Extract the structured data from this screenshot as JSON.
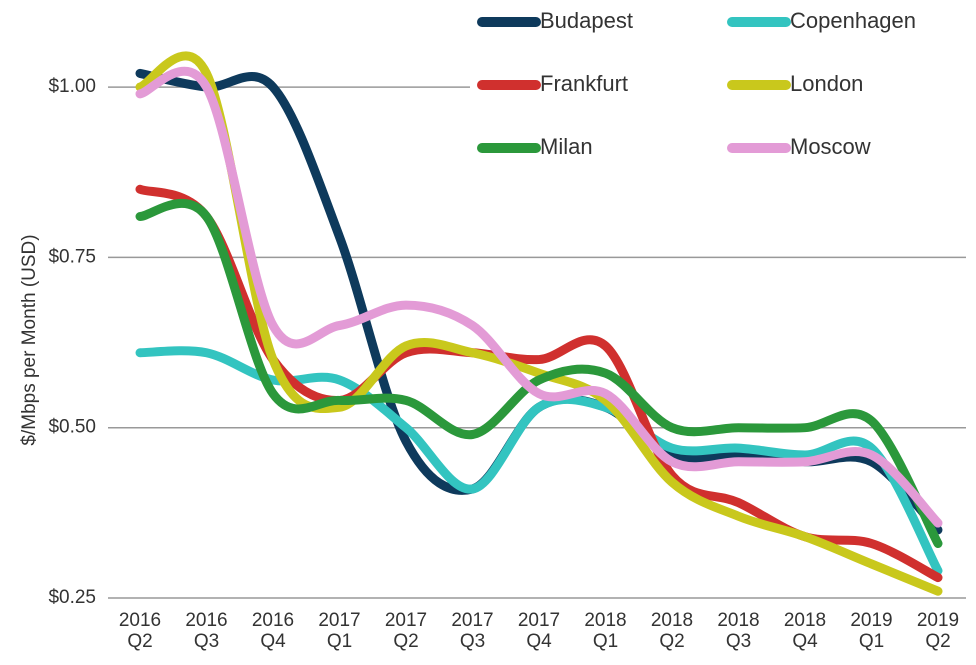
{
  "chart_data": {
    "type": "line",
    "y_label": "$/Mbps per Month (USD)",
    "categories": [
      "2016 Q2",
      "2016 Q3",
      "2016 Q4",
      "2017 Q1",
      "2017 Q2",
      "2017 Q3",
      "2017 Q4",
      "2018 Q1",
      "2018 Q2",
      "2018 Q3",
      "2018 Q4",
      "2019 Q1",
      "2019 Q2"
    ],
    "series": [
      {
        "name": "Budapest",
        "color": "#0e3a5c",
        "values": [
          1.02,
          1.0,
          1.0,
          0.78,
          0.48,
          0.41,
          0.53,
          0.53,
          0.46,
          0.46,
          0.45,
          0.45,
          0.35
        ]
      },
      {
        "name": "Copenhagen",
        "color": "#33c4c0",
        "values": [
          0.61,
          0.61,
          0.57,
          0.57,
          0.5,
          0.41,
          0.53,
          0.53,
          0.47,
          0.47,
          0.46,
          0.47,
          0.29
        ]
      },
      {
        "name": "Frankfurt",
        "color": "#d0302e",
        "values": [
          0.85,
          0.81,
          0.6,
          0.54,
          0.61,
          0.61,
          0.6,
          0.62,
          0.43,
          0.39,
          0.34,
          0.33,
          0.28
        ]
      },
      {
        "name": "London",
        "color": "#c9c81c",
        "values": [
          1.0,
          1.02,
          0.6,
          0.53,
          0.62,
          0.61,
          0.58,
          0.54,
          0.42,
          0.37,
          0.34,
          0.3,
          0.26
        ]
      },
      {
        "name": "Milan",
        "color": "#2b983b",
        "values": [
          0.81,
          0.81,
          0.55,
          0.54,
          0.54,
          0.49,
          0.57,
          0.58,
          0.5,
          0.5,
          0.5,
          0.51,
          0.33
        ]
      },
      {
        "name": "Moscow",
        "color": "#e39bd6",
        "values": [
          0.99,
          1.0,
          0.65,
          0.65,
          0.68,
          0.65,
          0.55,
          0.55,
          0.45,
          0.45,
          0.45,
          0.46,
          0.36
        ]
      }
    ],
    "ylim": [
      0.25,
      1.05
    ],
    "yticks": [
      {
        "value": 0.25,
        "label": "$0.25"
      },
      {
        "value": 0.5,
        "label": "$0.50"
      },
      {
        "value": 0.75,
        "label": "$0.75"
      },
      {
        "value": 1,
        "label": "$1.00"
      }
    ],
    "grid": true,
    "legend": "top-right"
  }
}
